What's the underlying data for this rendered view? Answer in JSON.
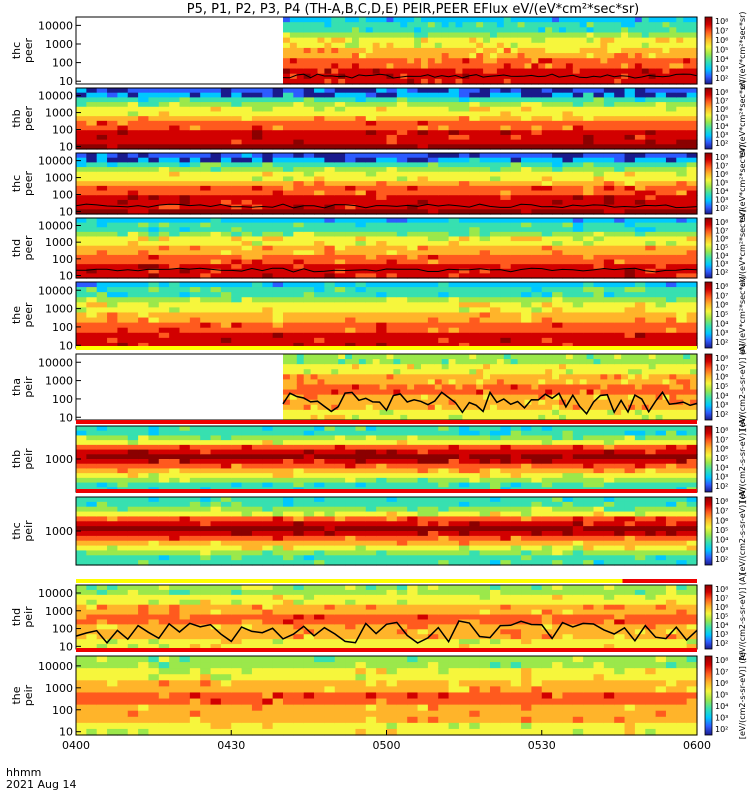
{
  "title": "P5, P1, P2, P3, P4 (TH-A,B,C,D,E) PEIR,PEER EFlux eV/(eV*cm²*sec*sr)",
  "footer": {
    "time_label": "hhmm",
    "date": "2021 Aug 14"
  },
  "colors": {
    "colormap": [
      "#1a1a8c",
      "#2d5bff",
      "#00c8ff",
      "#37e0b0",
      "#9be84b",
      "#f6f63c",
      "#ffb42a",
      "#ff5a1e",
      "#d20000",
      "#8b0000"
    ],
    "yellow_bar": "#ffff00",
    "red_bar": "#ee0000",
    "trace": "#000000"
  },
  "chart_data": {
    "type": "heatmap",
    "x_ticks": [
      "0400",
      "0430",
      "0500",
      "0530",
      "0600"
    ],
    "x_range_minutes": [
      0,
      120
    ],
    "colorbar_ticks": [
      "10²",
      "10³",
      "10⁴",
      "10⁵",
      "10⁶",
      "10⁷",
      "10⁸"
    ],
    "colorbar_label_peer": "eV/(eV*cm²*sec*sr)",
    "colorbar_label_peir": "[eV/(cm2-s-sr-eV)] (A)",
    "panels": [
      {
        "probe": "thc",
        "inst": "peer",
        "yscale": "log",
        "yticks": [
          "10",
          "100",
          "1000",
          "10000"
        ],
        "data_start_minute": 40,
        "bar_after": null
      },
      {
        "probe": "thb",
        "inst": "peer",
        "yscale": "log",
        "yticks": [
          "10",
          "100",
          "1000",
          "10000"
        ],
        "data_start_minute": 0,
        "bar_after": null
      },
      {
        "probe": "thc",
        "inst": "peer",
        "yscale": "log",
        "yticks": [
          "10",
          "100",
          "1000",
          "10000"
        ],
        "data_start_minute": 0,
        "bar_after": null
      },
      {
        "probe": "thd",
        "inst": "peer",
        "yscale": "log",
        "yticks": [
          "10",
          "100",
          "1000",
          "10000"
        ],
        "data_start_minute": 0,
        "bar_after": null
      },
      {
        "probe": "the",
        "inst": "peer",
        "yscale": "log",
        "yticks": [
          "10",
          "100",
          "1000",
          "10000"
        ],
        "data_start_minute": 0,
        "bar_after": "yellow"
      },
      {
        "probe": "tha",
        "inst": "peir",
        "yscale": "log",
        "yticks": [
          "10",
          "100",
          "1000",
          "10000"
        ],
        "data_start_minute": 40,
        "bar_after": "red"
      },
      {
        "probe": "thb",
        "inst": "peir",
        "yscale": "log",
        "yticks": [
          "1000"
        ],
        "data_start_minute": 0,
        "bar_after": "red"
      },
      {
        "probe": "thc",
        "inst": "peir",
        "yscale": "log",
        "yticks": [
          "1000"
        ],
        "data_start_minute": 0,
        "bar_after": "yellow-red"
      },
      {
        "probe": "thd",
        "inst": "peir",
        "yscale": "log",
        "yticks": [
          "10",
          "100",
          "1000",
          "10000"
        ],
        "data_start_minute": 0,
        "bar_after": "red"
      },
      {
        "probe": "the",
        "inst": "peir",
        "yscale": "log",
        "yticks": [
          "10",
          "100",
          "1000",
          "10000"
        ],
        "data_start_minute": 0,
        "bar_after": null
      }
    ]
  }
}
